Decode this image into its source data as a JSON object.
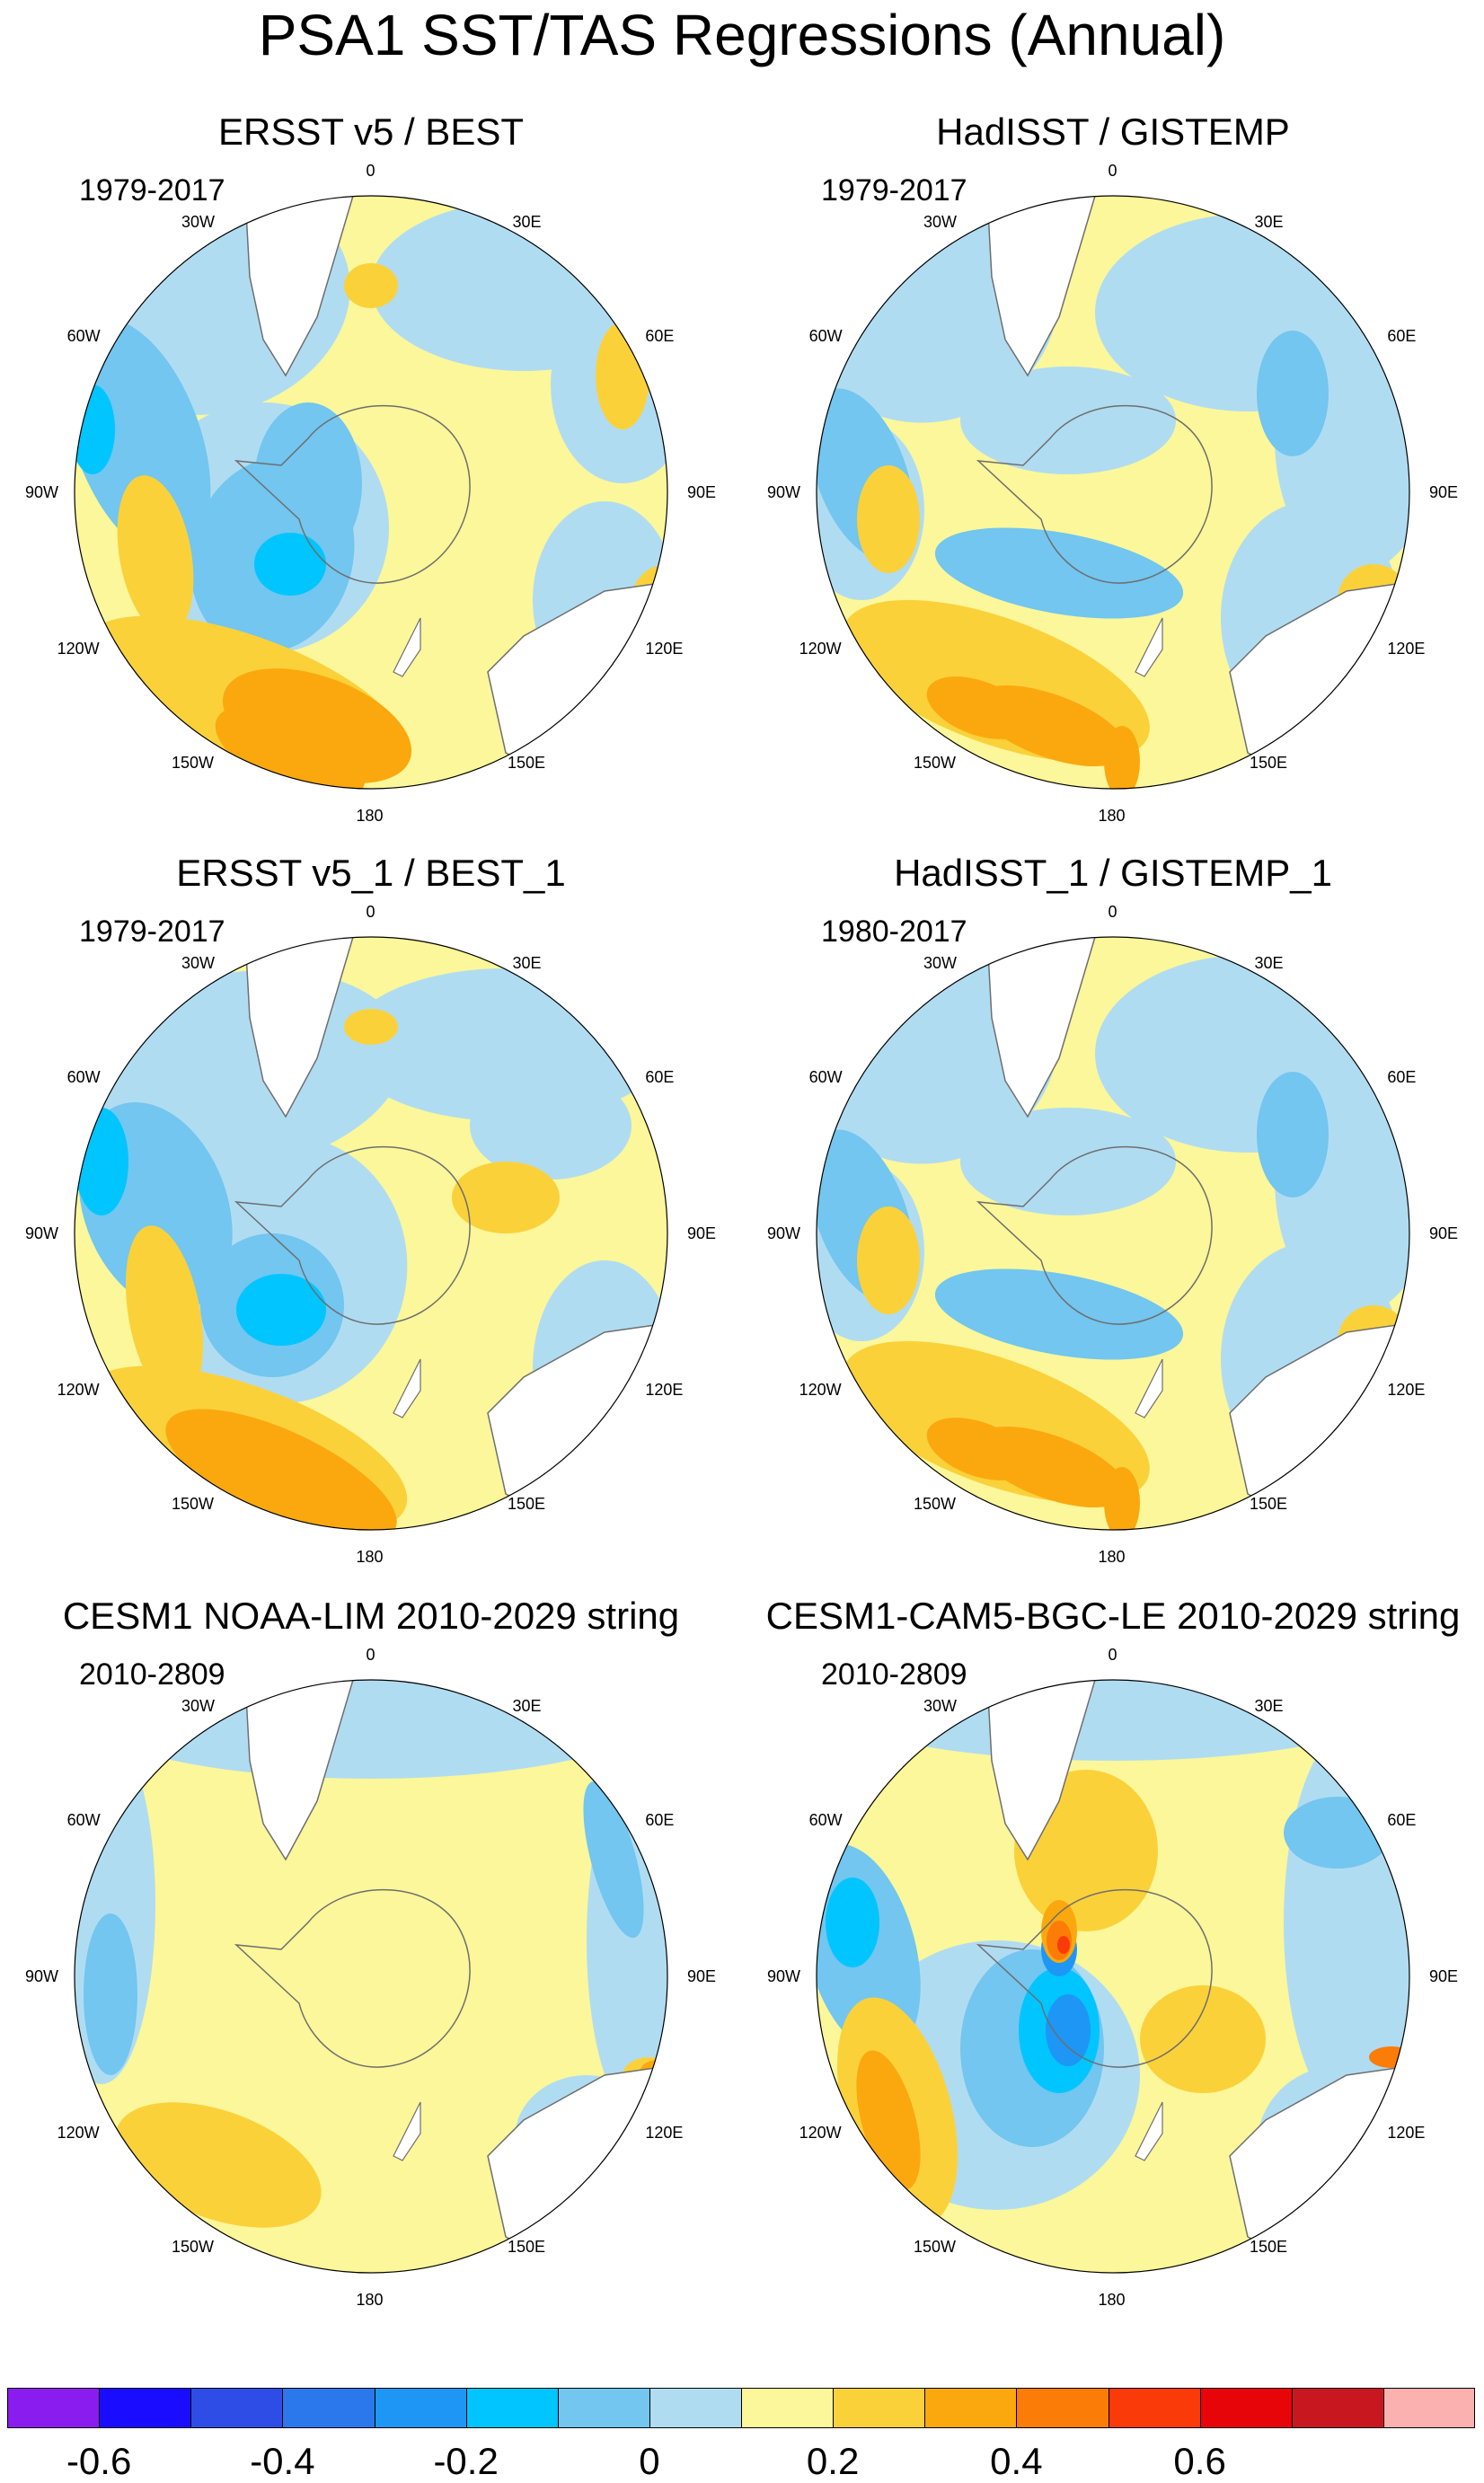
{
  "title": "PSA1 SST/TAS Regressions (Annual)",
  "panels": [
    {
      "title": "ERSST v5 / BEST",
      "years": "1979-2017",
      "pattern": "obs_smooth"
    },
    {
      "title": "HadISST / GISTEMP",
      "years": "1979-2017",
      "pattern": "obs_noisy"
    },
    {
      "title": "ERSST v5_1 / BEST_1",
      "years": "1979-2017",
      "pattern": "obs_smooth2"
    },
    {
      "title": "HadISST_1 / GISTEMP_1",
      "years": "1980-2017",
      "pattern": "obs_noisy"
    },
    {
      "title": "CESM1 NOAA-LIM 2010-2029 string",
      "years": "2010-2809",
      "pattern": "lim"
    },
    {
      "title": "CESM1-CAM5-BGC-LE 2010-2029 string",
      "years": "2010-2809",
      "pattern": "le"
    }
  ],
  "longitude_labels": [
    "0",
    "30E",
    "60E",
    "90E",
    "120E",
    "150E",
    "180",
    "150W",
    "120W",
    "90W",
    "60W",
    "30W"
  ],
  "colorbar": {
    "colors": [
      "#8a1cf0",
      "#1a0dff",
      "#2e4de6",
      "#2a78eb",
      "#1e96f5",
      "#00c5ff",
      "#72c6ef",
      "#b0dcf2",
      "#fbf79a",
      "#fbd13a",
      "#fba80f",
      "#fb7c06",
      "#fb3a0a",
      "#e8050a",
      "#c8171e",
      "#fcb1b1"
    ],
    "labels": [
      "-0.6",
      "-0.4",
      "-0.2",
      "0",
      "0.2",
      "0.4",
      "0.6"
    ],
    "label_values": [
      -0.6,
      -0.4,
      -0.2,
      0,
      0.2,
      0.4,
      0.6
    ]
  },
  "colors": {
    "land": "#ffffff",
    "coast": "#6e6e6e",
    "neg1": "#b0dcf2",
    "neg2": "#72c6ef",
    "neg3": "#00c5ff",
    "neg4": "#1e96f5",
    "neg5": "#2a78eb",
    "pos1": "#fbf79a",
    "pos2": "#fbd13a",
    "pos3": "#fba80f",
    "pos4": "#fb7c06",
    "pos5": "#fb3a0a"
  }
}
